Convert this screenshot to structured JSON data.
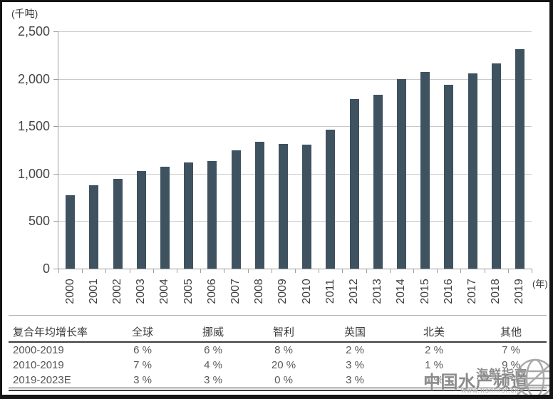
{
  "chart_data": {
    "type": "bar",
    "title": "",
    "unit_label": "(千吨)",
    "x_suffix_label": "(年)",
    "categories": [
      "2000",
      "2001",
      "2002",
      "2003",
      "2004",
      "2005",
      "2006",
      "2007",
      "2008",
      "2009",
      "2010",
      "2011",
      "2012",
      "2013",
      "2014",
      "2015",
      "2016",
      "2017",
      "2018",
      "2019"
    ],
    "values": [
      775,
      880,
      945,
      1025,
      1075,
      1115,
      1135,
      1245,
      1335,
      1315,
      1305,
      1465,
      1790,
      1835,
      2000,
      2075,
      1940,
      2060,
      2160,
      2310
    ],
    "ylim": [
      0,
      2500
    ],
    "yticks": [
      {
        "value": 2500,
        "label": "2,500"
      },
      {
        "value": 2000,
        "label": "2,000"
      },
      {
        "value": 1500,
        "label": "1,500"
      },
      {
        "value": 1000,
        "label": "1,000"
      },
      {
        "value": 500,
        "label": "500"
      },
      {
        "value": 0,
        "label": "0"
      }
    ],
    "grid": true,
    "legend": false,
    "bar_color": "#3E5260"
  },
  "table": {
    "header_label": "复合年均增长率",
    "columns": [
      "全球",
      "挪威",
      "智利",
      "英国",
      "北美",
      "其他"
    ],
    "rows": [
      {
        "label": "2000-2019",
        "values": [
          "6 %",
          "6 %",
          "8 %",
          "2 %",
          "2 %",
          "7 %"
        ]
      },
      {
        "label": "2010-2019",
        "values": [
          "7 %",
          "4 %",
          "20 %",
          "3 %",
          "1 %",
          "9 %"
        ]
      },
      {
        "label": "2019-2023E",
        "values": [
          "3 %",
          "3 %",
          "0 %",
          "3 %",
          "4 %",
          "2 %"
        ]
      }
    ]
  },
  "watermark": {
    "brand_small": "海鲜指南",
    "brand_large": "中国水产频道",
    "url": "www.fishfirst.cn"
  }
}
